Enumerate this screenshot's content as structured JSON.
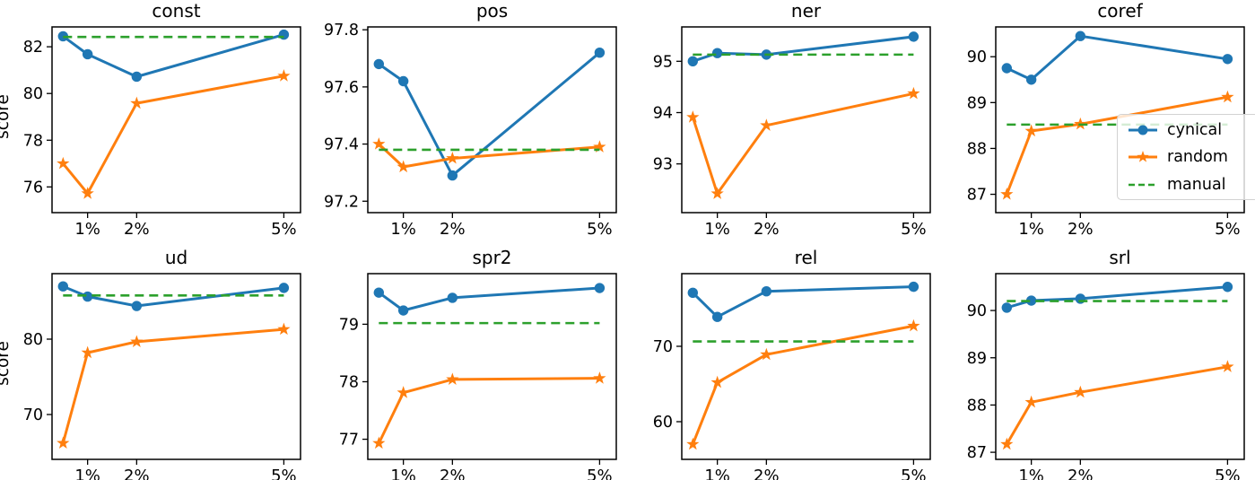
{
  "figure": {
    "ylabel": "score"
  },
  "colors": {
    "cynical": "#1f77b4",
    "random": "#ff7f0e",
    "manual": "#2ca02c",
    "frame": "#000000"
  },
  "legend": {
    "position": "coref-panel-lower-right",
    "items": [
      {
        "label": "cynical",
        "marker": "circle-line"
      },
      {
        "label": "random",
        "marker": "star-line"
      },
      {
        "label": "manual",
        "marker": "dashed-line"
      }
    ]
  },
  "chart_data": [
    {
      "type": "line",
      "title": "const",
      "x": [
        0.5,
        1,
        2,
        5
      ],
      "xlim": [
        0.275,
        5.34
      ],
      "xticks": {
        "values": [
          1,
          2,
          5
        ],
        "labels": [
          "1%",
          "2%",
          "5%"
        ]
      },
      "yticks": [
        76,
        78,
        80,
        82
      ],
      "ylim": [
        74.9,
        82.85
      ],
      "series": [
        {
          "name": "cynical",
          "marker": "circle",
          "values": [
            82.45,
            81.68,
            80.72,
            82.52
          ]
        },
        {
          "name": "random",
          "marker": "star",
          "values": [
            77.0,
            75.72,
            79.58,
            80.75
          ]
        },
        {
          "name": "manual",
          "style": "dashed",
          "value": 82.42
        }
      ]
    },
    {
      "type": "line",
      "title": "pos",
      "x": [
        0.5,
        1,
        2,
        5
      ],
      "xlim": [
        0.275,
        5.34
      ],
      "xticks": {
        "values": [
          1,
          2,
          5
        ],
        "labels": [
          "1%",
          "2%",
          "5%"
        ]
      },
      "yticks": [
        97.2,
        97.4,
        97.6,
        97.8
      ],
      "ylim": [
        97.16,
        97.81
      ],
      "series": [
        {
          "name": "cynical",
          "marker": "circle",
          "values": [
            97.68,
            97.62,
            97.29,
            97.72
          ]
        },
        {
          "name": "random",
          "marker": "star",
          "values": [
            97.4,
            97.32,
            97.35,
            97.39
          ]
        },
        {
          "name": "manual",
          "style": "dashed",
          "value": 97.38
        }
      ]
    },
    {
      "type": "line",
      "title": "ner",
      "x": [
        0.5,
        1,
        2,
        5
      ],
      "xlim": [
        0.275,
        5.34
      ],
      "xticks": {
        "values": [
          1,
          2,
          5
        ],
        "labels": [
          "1%",
          "2%",
          "5%"
        ]
      },
      "yticks": [
        93,
        94,
        95
      ],
      "ylim": [
        92.05,
        95.67
      ],
      "series": [
        {
          "name": "cynical",
          "marker": "circle",
          "values": [
            95.0,
            95.16,
            95.13,
            95.48
          ]
        },
        {
          "name": "random",
          "marker": "star",
          "values": [
            93.91,
            92.42,
            93.75,
            94.37
          ]
        },
        {
          "name": "manual",
          "style": "dashed",
          "value": 95.13
        }
      ]
    },
    {
      "type": "line",
      "title": "coref",
      "x": [
        0.5,
        1,
        2,
        5
      ],
      "xlim": [
        0.275,
        5.34
      ],
      "xticks": {
        "values": [
          1,
          2,
          5
        ],
        "labels": [
          "1%",
          "2%",
          "5%"
        ]
      },
      "yticks": [
        87,
        88,
        89,
        90
      ],
      "ylim": [
        86.6,
        90.65
      ],
      "series": [
        {
          "name": "cynical",
          "marker": "circle",
          "values": [
            89.75,
            89.5,
            90.45,
            89.95
          ]
        },
        {
          "name": "random",
          "marker": "star",
          "values": [
            87.0,
            88.38,
            88.53,
            89.12
          ]
        },
        {
          "name": "manual",
          "style": "dashed",
          "value": 88.52
        }
      ]
    },
    {
      "type": "line",
      "title": "ud",
      "x": [
        0.5,
        1,
        2,
        5
      ],
      "xlim": [
        0.275,
        5.34
      ],
      "xticks": {
        "values": [
          1,
          2,
          5
        ],
        "labels": [
          "1%",
          "2%",
          "5%"
        ]
      },
      "yticks": [
        70,
        80
      ],
      "ylim": [
        64.05,
        88.69
      ],
      "series": [
        {
          "name": "cynical",
          "marker": "circle",
          "values": [
            87.0,
            85.65,
            84.4,
            86.8
          ]
        },
        {
          "name": "random",
          "marker": "star",
          "values": [
            66.2,
            78.2,
            79.65,
            81.3
          ]
        },
        {
          "name": "manual",
          "style": "dashed",
          "value": 85.8
        }
      ]
    },
    {
      "type": "line",
      "title": "spr2",
      "x": [
        0.5,
        1,
        2,
        5
      ],
      "xlim": [
        0.275,
        5.34
      ],
      "xticks": {
        "values": [
          1,
          2,
          5
        ],
        "labels": [
          "1%",
          "2%",
          "5%"
        ]
      },
      "yticks": [
        77,
        78,
        79
      ],
      "ylim": [
        76.65,
        79.88
      ],
      "series": [
        {
          "name": "cynical",
          "marker": "circle",
          "values": [
            79.55,
            79.24,
            79.46,
            79.63
          ]
        },
        {
          "name": "random",
          "marker": "star",
          "values": [
            76.93,
            77.81,
            78.04,
            78.06
          ]
        },
        {
          "name": "manual",
          "style": "dashed",
          "value": 79.02
        }
      ]
    },
    {
      "type": "line",
      "title": "rel",
      "x": [
        0.5,
        1,
        2,
        5
      ],
      "xlim": [
        0.275,
        5.34
      ],
      "xticks": {
        "values": [
          1,
          2,
          5
        ],
        "labels": [
          "1%",
          "2%",
          "5%"
        ]
      },
      "yticks": [
        60,
        70
      ],
      "ylim": [
        55.0,
        79.64
      ],
      "series": [
        {
          "name": "cynical",
          "marker": "circle",
          "values": [
            77.1,
            73.9,
            77.3,
            77.9
          ]
        },
        {
          "name": "random",
          "marker": "star",
          "values": [
            57.0,
            65.2,
            68.9,
            72.7
          ]
        },
        {
          "name": "manual",
          "style": "dashed",
          "value": 70.65
        }
      ]
    },
    {
      "type": "line",
      "title": "srl",
      "x": [
        0.5,
        1,
        2,
        5
      ],
      "xlim": [
        0.275,
        5.34
      ],
      "xticks": {
        "values": [
          1,
          2,
          5
        ],
        "labels": [
          "1%",
          "2%",
          "5%"
        ]
      },
      "yticks": [
        87,
        88,
        89,
        90
      ],
      "ylim": [
        86.85,
        90.78
      ],
      "series": [
        {
          "name": "cynical",
          "marker": "circle",
          "values": [
            90.06,
            90.21,
            90.25,
            90.5
          ]
        },
        {
          "name": "random",
          "marker": "star",
          "values": [
            87.17,
            88.06,
            88.27,
            88.81
          ]
        },
        {
          "name": "manual",
          "style": "dashed",
          "value": 90.2
        }
      ]
    }
  ]
}
